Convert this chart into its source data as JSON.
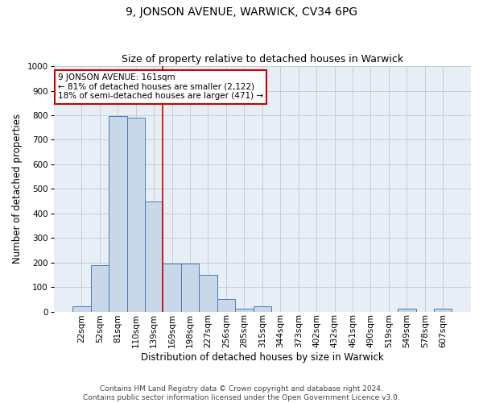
{
  "title": "9, JONSON AVENUE, WARWICK, CV34 6PG",
  "subtitle": "Size of property relative to detached houses in Warwick",
  "xlabel": "Distribution of detached houses by size in Warwick",
  "ylabel": "Number of detached properties",
  "bar_labels": [
    "22sqm",
    "52sqm",
    "81sqm",
    "110sqm",
    "139sqm",
    "169sqm",
    "198sqm",
    "227sqm",
    "256sqm",
    "285sqm",
    "315sqm",
    "344sqm",
    "373sqm",
    "402sqm",
    "432sqm",
    "461sqm",
    "490sqm",
    "519sqm",
    "549sqm",
    "578sqm",
    "607sqm"
  ],
  "bar_values": [
    20,
    190,
    795,
    790,
    450,
    195,
    195,
    150,
    50,
    10,
    20,
    0,
    0,
    0,
    0,
    0,
    0,
    0,
    10,
    0,
    10
  ],
  "bar_color": "#c8d8e8",
  "bar_edge_color": "#4a7ab5",
  "vline_x": 4.5,
  "vline_color": "#cc0000",
  "annotation_text": "9 JONSON AVENUE: 161sqm\n← 81% of detached houses are smaller (2,122)\n18% of semi-detached houses are larger (471) →",
  "annotation_box_color": "#ffffff",
  "annotation_box_edge": "#cc0000",
  "ylim": [
    0,
    1000
  ],
  "yticks": [
    0,
    100,
    200,
    300,
    400,
    500,
    600,
    700,
    800,
    900,
    1000
  ],
  "grid_color": "#c0c8d0",
  "bg_color": "#e8eef5",
  "footer": "Contains HM Land Registry data © Crown copyright and database right 2024.\nContains public sector information licensed under the Open Government Licence v3.0.",
  "title_fontsize": 10,
  "subtitle_fontsize": 9,
  "axis_label_fontsize": 8.5,
  "tick_fontsize": 7.5,
  "footer_fontsize": 6.5,
  "annotation_fontsize": 7.5
}
